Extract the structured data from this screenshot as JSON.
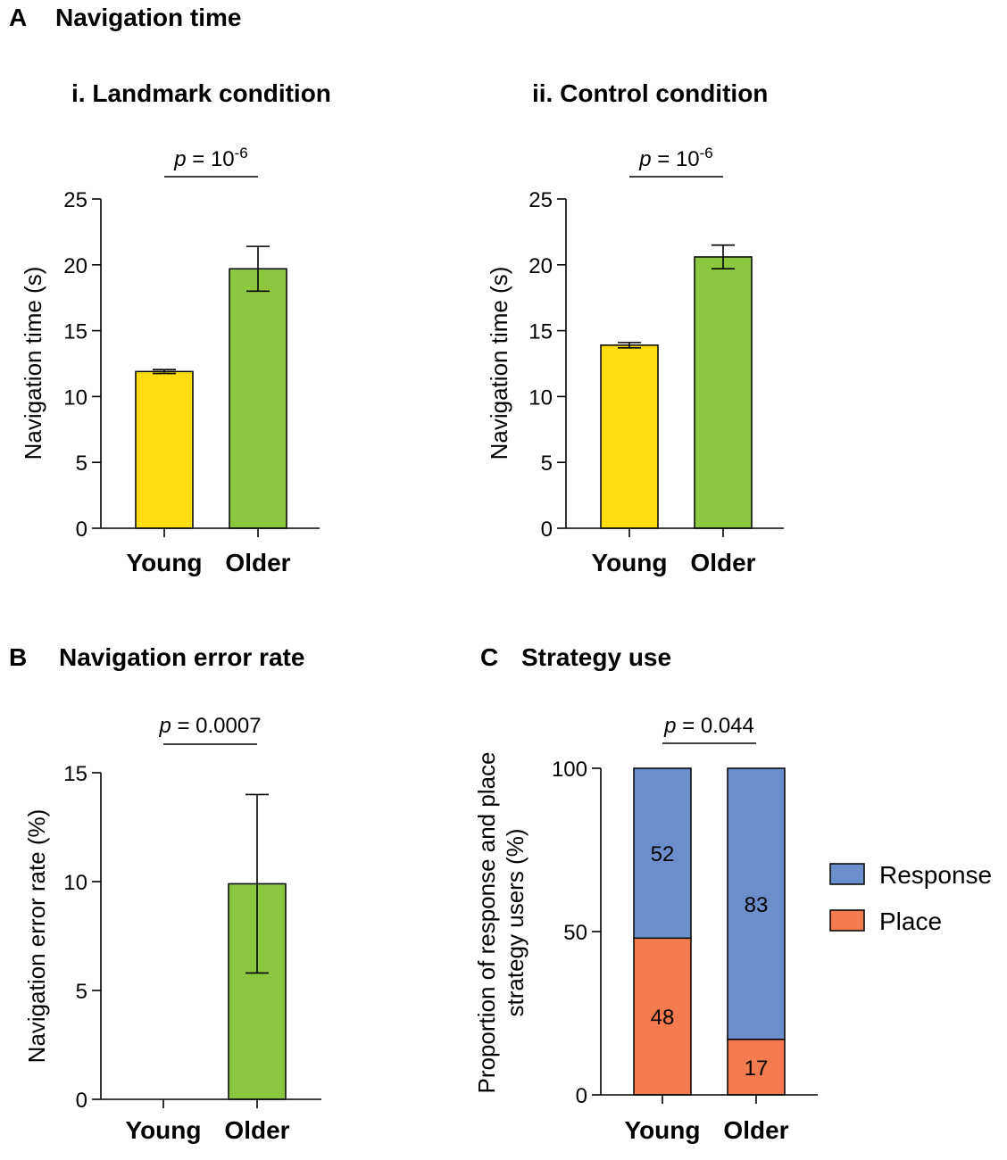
{
  "colors": {
    "young": "#FFDD0F",
    "older": "#8DC63F",
    "response": "#6B8FCC",
    "place": "#F47A50",
    "axis": "#000000"
  },
  "panel_a": {
    "letter": "A",
    "title": "Navigation time"
  },
  "panel_b": {
    "letter": "B",
    "title": "Navigation error rate"
  },
  "panel_c": {
    "letter": "C",
    "title": "Strategy use"
  },
  "chart_data": [
    {
      "id": "landmark",
      "type": "bar",
      "title": "i. Landmark condition",
      "ylabel": "Navigation time (s)",
      "xlabel": "",
      "categories": [
        "Young",
        "Older"
      ],
      "values": [
        11.9,
        19.7
      ],
      "errors": [
        0.15,
        1.7
      ],
      "ylim": [
        0,
        25
      ],
      "yticks": [
        0,
        5,
        10,
        15,
        20,
        25
      ],
      "ytick_labels": [
        "0",
        "5",
        "10",
        "15",
        "20",
        "25"
      ],
      "p_label": {
        "italic": "p",
        "text": " = 10",
        "sup": "-6"
      }
    },
    {
      "id": "control",
      "type": "bar",
      "title": "ii. Control condition",
      "ylabel": "Navigation time (s)",
      "xlabel": "",
      "categories": [
        "Young",
        "Older"
      ],
      "values": [
        13.9,
        20.6
      ],
      "errors": [
        0.2,
        0.9
      ],
      "ylim": [
        0,
        25
      ],
      "yticks": [
        0,
        5,
        10,
        15,
        20,
        25
      ],
      "ytick_labels": [
        "0",
        "5",
        "10",
        "15",
        "20",
        "25"
      ],
      "p_label": {
        "italic": "p",
        "text": " = 10",
        "sup": "-6"
      }
    },
    {
      "id": "error",
      "type": "bar",
      "title": "Navigation error rate",
      "ylabel": "Navigation error rate (%)",
      "xlabel": "",
      "categories": [
        "Young",
        "Older"
      ],
      "values": [
        0,
        9.9
      ],
      "errors": [
        0,
        4.1
      ],
      "ylim": [
        0,
        15
      ],
      "yticks": [
        0,
        5,
        10,
        15
      ],
      "ytick_labels": [
        "0",
        "5",
        "10",
        "15"
      ],
      "p_label": {
        "italic": "p",
        "text": " = 0.0007",
        "sup": ""
      }
    },
    {
      "id": "strategy",
      "type": "bar",
      "stacked": true,
      "title": "Strategy use",
      "ylabel": "Proportion of response and place strategy users (%)",
      "ylabel_lines": [
        "Proportion of response and place",
        "strategy users (%)"
      ],
      "xlabel": "",
      "categories": [
        "Young",
        "Older"
      ],
      "series": [
        {
          "name": "Place",
          "values": [
            48,
            17
          ],
          "labels": [
            "48",
            "17"
          ]
        },
        {
          "name": "Response",
          "values": [
            52,
            83
          ],
          "labels": [
            "52",
            "83"
          ]
        }
      ],
      "legend": [
        "Response",
        "Place"
      ],
      "legend_position": "right",
      "ylim": [
        0,
        100
      ],
      "yticks": [
        0,
        50,
        100
      ],
      "ytick_labels": [
        "0",
        "50",
        "100"
      ],
      "p_label": {
        "italic": "p",
        "text": " = 0.044",
        "sup": ""
      }
    }
  ]
}
